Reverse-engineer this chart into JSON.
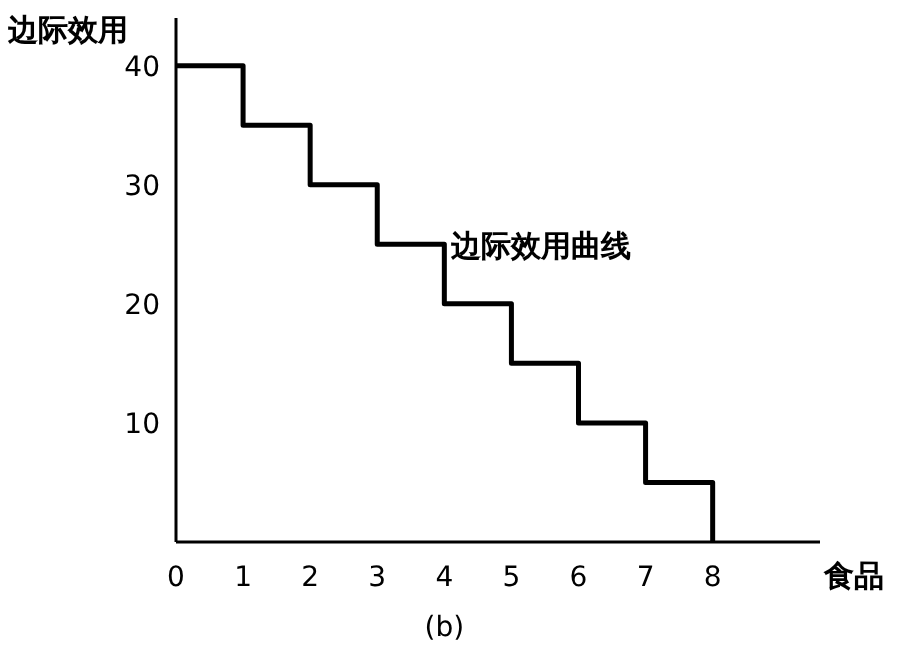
{
  "chart_data": {
    "type": "step",
    "xlabel": "食品",
    "ylabel": "边际效用",
    "x": [
      0,
      1,
      2,
      3,
      4,
      5,
      6,
      7,
      8
    ],
    "series": [
      {
        "color": "#000000",
        "values": [
          40,
          35,
          30,
          25,
          20,
          15,
          10,
          5,
          0
        ]
      }
    ],
    "xlim": [
      0,
      9.6
    ],
    "ylim": [
      0,
      44
    ],
    "xticks": [
      0,
      1,
      2,
      3,
      4,
      5,
      6,
      7,
      8
    ],
    "yticks": [
      10,
      20,
      30,
      40
    ],
    "grid": false,
    "annotations": [
      {
        "text": "边际效用曲线",
        "x": 4.1,
        "y": 24
      },
      "(b)"
    ]
  }
}
